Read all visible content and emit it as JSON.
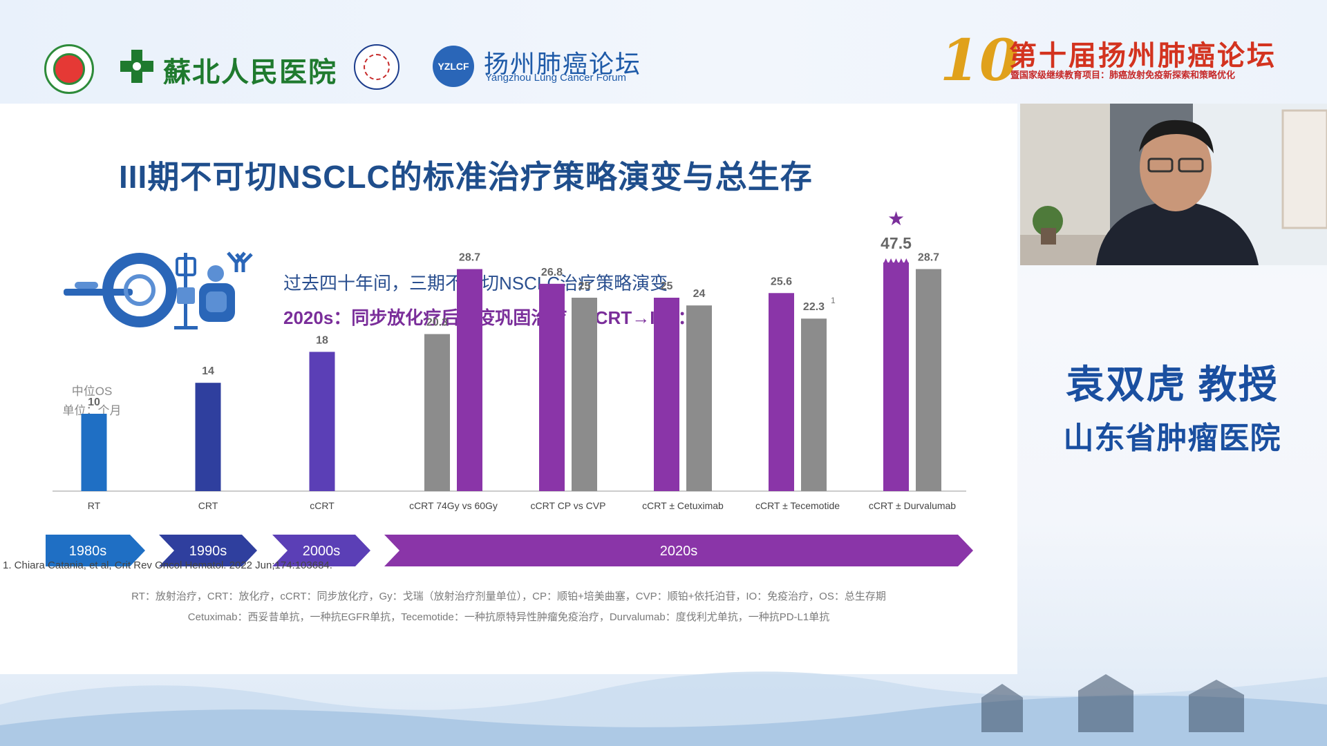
{
  "header": {
    "hospital_name": "蘇北人民医院",
    "forum_logo_text": "YZLCF",
    "forum_name_cn": "扬州肺癌论坛",
    "forum_name_en": "Yangzhou Lung Cancer Forum",
    "event_number": "10",
    "event_title": "第十届扬州肺癌论坛",
    "event_subtitle": "暨国家级继续教育项目：肺癌放射免疫新探索和策略优化"
  },
  "slide": {
    "title": "III期不可切NSCLC的标准治疗策略演变与总生存",
    "line1": "过去四十年间，三期不可切NSCLC治疗策略演变",
    "line2": "2020s：同步放化疗后免疫巩固治疗（cCRT→IO）：",
    "abbreviations_1": "RT：放射治疗，CRT：放化疗，cCRT：同步放化疗，Gy：戈瑞（放射治疗剂量单位），CP：顺铂+培美曲塞，CVP：顺铂+依托泊苷，IO：免疫治疗，OS：总生存期",
    "abbreviations_2": "Cetuximab：西妥昔单抗，一种抗EGFR单抗，Tecemotide：一种抗原特异性肿瘤免疫治疗，Durvalumab：度伐利尤单抗，一种抗PD-L1单抗",
    "reference": "1. Chiara Catania, et al, Crit Rev Oncol Hematol. 2022 Jun;174:103684."
  },
  "chart_data": {
    "type": "bar",
    "ylabel": "中位OS",
    "ylabel_unit": "单位：个月",
    "ylim": [
      0,
      50
    ],
    "categories": [
      "RT",
      "CRT",
      "cCRT",
      "cCRT 74Gy vs 60Gy",
      "cCRT CP vs CVP",
      "cCRT ± Cetuximab",
      "cCRT ± Tecemotide",
      "cCRT ± Durvalumab"
    ],
    "bars": [
      {
        "category": "RT",
        "value": 10,
        "color": "#1f6fc4"
      },
      {
        "category": "CRT",
        "value": 14,
        "color": "#2f3f9e"
      },
      {
        "category": "cCRT",
        "value": 18,
        "color": "#5b3fb6"
      },
      {
        "category": "cCRT 74Gy vs 60Gy",
        "value": 20.3,
        "color": "#8c8c8c"
      },
      {
        "category": "cCRT 74Gy vs 60Gy",
        "value": 28.7,
        "color": "#8a35a8"
      },
      {
        "category": "cCRT CP vs CVP",
        "value": 26.8,
        "color": "#8a35a8"
      },
      {
        "category": "cCRT CP vs CVP",
        "value": 25,
        "color": "#8c8c8c"
      },
      {
        "category": "cCRT ± Cetuximab",
        "value": 25,
        "color": "#8a35a8"
      },
      {
        "category": "cCRT ± Cetuximab",
        "value": 24,
        "color": "#8c8c8c"
      },
      {
        "category": "cCRT ± Tecemotide",
        "value": 25.6,
        "color": "#8a35a8"
      },
      {
        "category": "cCRT ± Tecemotide",
        "value": 22.3,
        "color": "#8c8c8c",
        "superscript": "1"
      },
      {
        "category": "cCRT ± Durvalumab",
        "value": 47.5,
        "color": "#8a35a8",
        "highlight": true,
        "axis_break": true
      },
      {
        "category": "cCRT ± Durvalumab",
        "value": 28.7,
        "color": "#8c8c8c"
      }
    ],
    "highlight_marker": "★",
    "eras": [
      {
        "label": "1980s",
        "color": "#1f6fc4"
      },
      {
        "label": "1990s",
        "color": "#2f3f9e"
      },
      {
        "label": "2000s",
        "color": "#5b3fb6"
      },
      {
        "label": "2020s",
        "color": "#8a35a8"
      }
    ]
  },
  "speaker": {
    "name": "袁双虎 教授",
    "hospital": "山东省肿瘤医院"
  },
  "colors": {
    "title_blue": "#1f4e8c",
    "accent_purple": "#8a35a8",
    "speaker_blue": "#1a4fa0"
  }
}
